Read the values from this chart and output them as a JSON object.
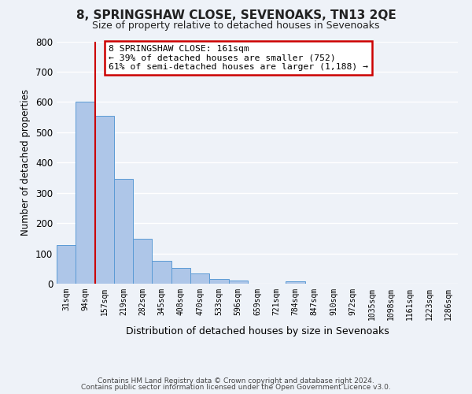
{
  "title": "8, SPRINGSHAW CLOSE, SEVENOAKS, TN13 2QE",
  "subtitle": "Size of property relative to detached houses in Sevenoaks",
  "bar_labels": [
    "31sqm",
    "94sqm",
    "157sqm",
    "219sqm",
    "282sqm",
    "345sqm",
    "408sqm",
    "470sqm",
    "533sqm",
    "596sqm",
    "659sqm",
    "721sqm",
    "784sqm",
    "847sqm",
    "910sqm",
    "972sqm",
    "1035sqm",
    "1098sqm",
    "1161sqm",
    "1223sqm",
    "1286sqm"
  ],
  "bar_values": [
    127,
    600,
    553,
    347,
    148,
    75,
    52,
    33,
    15,
    11,
    0,
    0,
    8,
    0,
    0,
    0,
    0,
    0,
    0,
    0,
    0
  ],
  "bar_color": "#aec6e8",
  "bar_edge_color": "#5b9bd5",
  "bar_width": 1.0,
  "vline_x": 1.5,
  "vline_color": "#cc0000",
  "ylim": [
    0,
    800
  ],
  "yticks": [
    0,
    100,
    200,
    300,
    400,
    500,
    600,
    700,
    800
  ],
  "ylabel": "Number of detached properties",
  "xlabel": "Distribution of detached houses by size in Sevenoaks",
  "annotation_title": "8 SPRINGSHAW CLOSE: 161sqm",
  "annotation_line1": "← 39% of detached houses are smaller (752)",
  "annotation_line2": "61% of semi-detached houses are larger (1,188) →",
  "annotation_box_color": "#ffffff",
  "annotation_box_edge": "#cc0000",
  "bg_color": "#eef2f8",
  "grid_color": "#ffffff",
  "footer1": "Contains HM Land Registry data © Crown copyright and database right 2024.",
  "footer2": "Contains public sector information licensed under the Open Government Licence v3.0."
}
